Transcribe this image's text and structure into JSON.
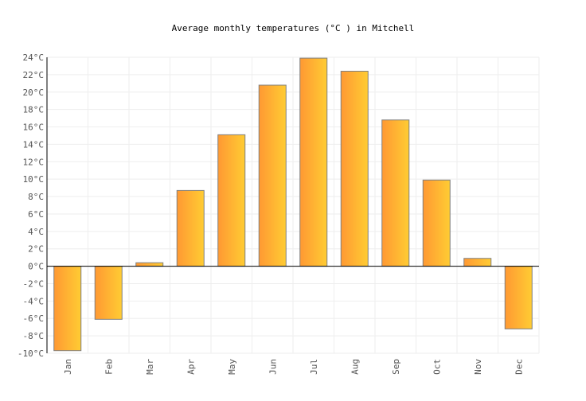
{
  "chart_data": {
    "type": "bar",
    "title": "Average monthly temperatures (°C ) in Mitchell",
    "xlabel": "",
    "ylabel": "",
    "categories": [
      "Jan",
      "Feb",
      "Mar",
      "Apr",
      "May",
      "Jun",
      "Jul",
      "Aug",
      "Sep",
      "Oct",
      "Nov",
      "Dec"
    ],
    "values": [
      -9.7,
      -6.1,
      0.4,
      8.7,
      15.1,
      20.8,
      23.9,
      22.4,
      16.8,
      9.9,
      0.9,
      -7.2
    ],
    "ylim": [
      -10,
      24
    ],
    "yticks": [
      "-10°C",
      "-8°C",
      "-6°C",
      "-4°C",
      "-2°C",
      "0°C",
      "2°C",
      "4°C",
      "6°C",
      "8°C",
      "10°C",
      "12°C",
      "14°C",
      "16°C",
      "18°C",
      "20°C",
      "22°C",
      "24°C"
    ],
    "grid": true,
    "colors": {
      "bar_left": "#ff9933",
      "bar_right": "#ffcc33",
      "bar_stroke": "#808080",
      "grid": "#eeeeee"
    }
  }
}
